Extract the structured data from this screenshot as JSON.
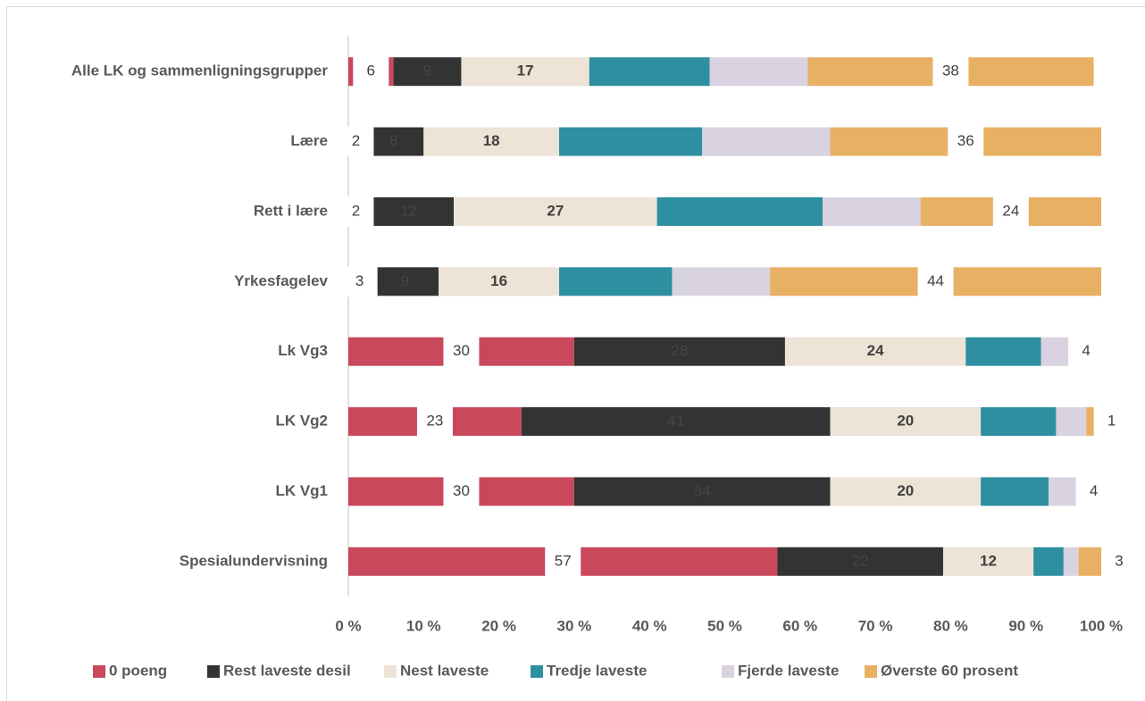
{
  "chart_data": {
    "type": "stacked-barh",
    "categories": [
      "Alle LK og sammenligningsgrupper",
      "Lære",
      "Rett i lære",
      "Yrkesfagelev",
      "Lk Vg3",
      "LK Vg2",
      "LK Vg1",
      "Spesialundervisning"
    ],
    "series": [
      {
        "name": "0 poeng",
        "color": "#c9485b",
        "label_style": "boxed",
        "values": [
          6,
          2,
          2,
          3,
          30,
          23,
          30,
          57
        ]
      },
      {
        "name": "Rest laveste desil",
        "color": "#333333",
        "label_style": "inside",
        "values": [
          9,
          8,
          12,
          9,
          28,
          41,
          34,
          22
        ]
      },
      {
        "name": "Nest laveste",
        "color": "#ede3d6",
        "label_style": "bold",
        "values": [
          17,
          18,
          27,
          16,
          24,
          20,
          20,
          12
        ]
      },
      {
        "name": "Tredje laveste",
        "color": "#2e8fa0",
        "label_style": "none",
        "values": [
          16,
          19,
          22,
          15,
          10,
          10,
          9,
          4
        ]
      },
      {
        "name": "Fjerde laveste",
        "color": "#d9d2e0",
        "label_style": "none",
        "values": [
          13,
          17,
          13,
          13,
          4,
          4,
          4,
          2
        ]
      },
      {
        "name": "Øverste 60 prosent",
        "color": "#e8b063",
        "label_style": "boxed",
        "values": [
          38,
          36,
          24,
          44,
          4,
          1,
          4,
          3
        ]
      }
    ],
    "xlim": [
      0,
      100
    ],
    "xticks": [
      {
        "value": 0,
        "label": "0 %"
      },
      {
        "value": 10,
        "label": "10 %"
      },
      {
        "value": 20,
        "label": "20 %"
      },
      {
        "value": 30,
        "label": "30 %"
      },
      {
        "value": 40,
        "label": "40 %"
      },
      {
        "value": 50,
        "label": "50 %"
      },
      {
        "value": 60,
        "label": "60 %"
      },
      {
        "value": 70,
        "label": "70 %"
      },
      {
        "value": 80,
        "label": "80 %"
      },
      {
        "value": 90,
        "label": "90 %"
      },
      {
        "value": 100,
        "label": "100 %"
      }
    ],
    "legend": "bottom"
  }
}
